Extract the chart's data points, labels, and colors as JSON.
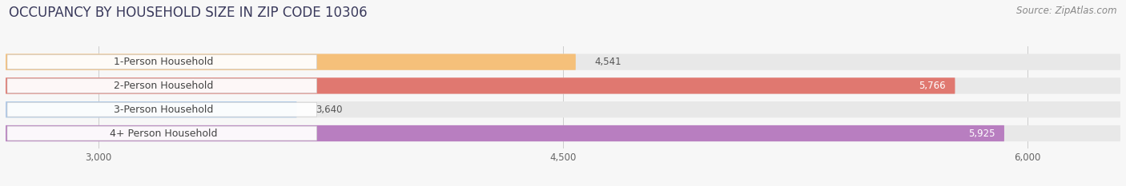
{
  "title": "OCCUPANCY BY HOUSEHOLD SIZE IN ZIP CODE 10306",
  "source": "Source: ZipAtlas.com",
  "categories": [
    "1-Person Household",
    "2-Person Household",
    "3-Person Household",
    "4+ Person Household"
  ],
  "values": [
    4541,
    5766,
    3640,
    5925
  ],
  "bar_colors": [
    "#f5c07a",
    "#e07870",
    "#aec8e8",
    "#b87ec0"
  ],
  "label_colors": [
    "#555555",
    "#555555",
    "#555555",
    "#555555"
  ],
  "value_colors_inside": [
    "white",
    "white",
    "#555555",
    "white"
  ],
  "xlim_min": 2700,
  "xlim_max": 6300,
  "xmin": 2700,
  "xticks": [
    3000,
    4500,
    6000
  ],
  "xticklabels": [
    "3,000",
    "4,500",
    "6,000"
  ],
  "background_color": "#f7f7f7",
  "bar_bg_color": "#e8e8e8",
  "title_fontsize": 12,
  "source_fontsize": 8.5,
  "label_fontsize": 9,
  "value_fontsize": 8.5,
  "tick_fontsize": 8.5
}
